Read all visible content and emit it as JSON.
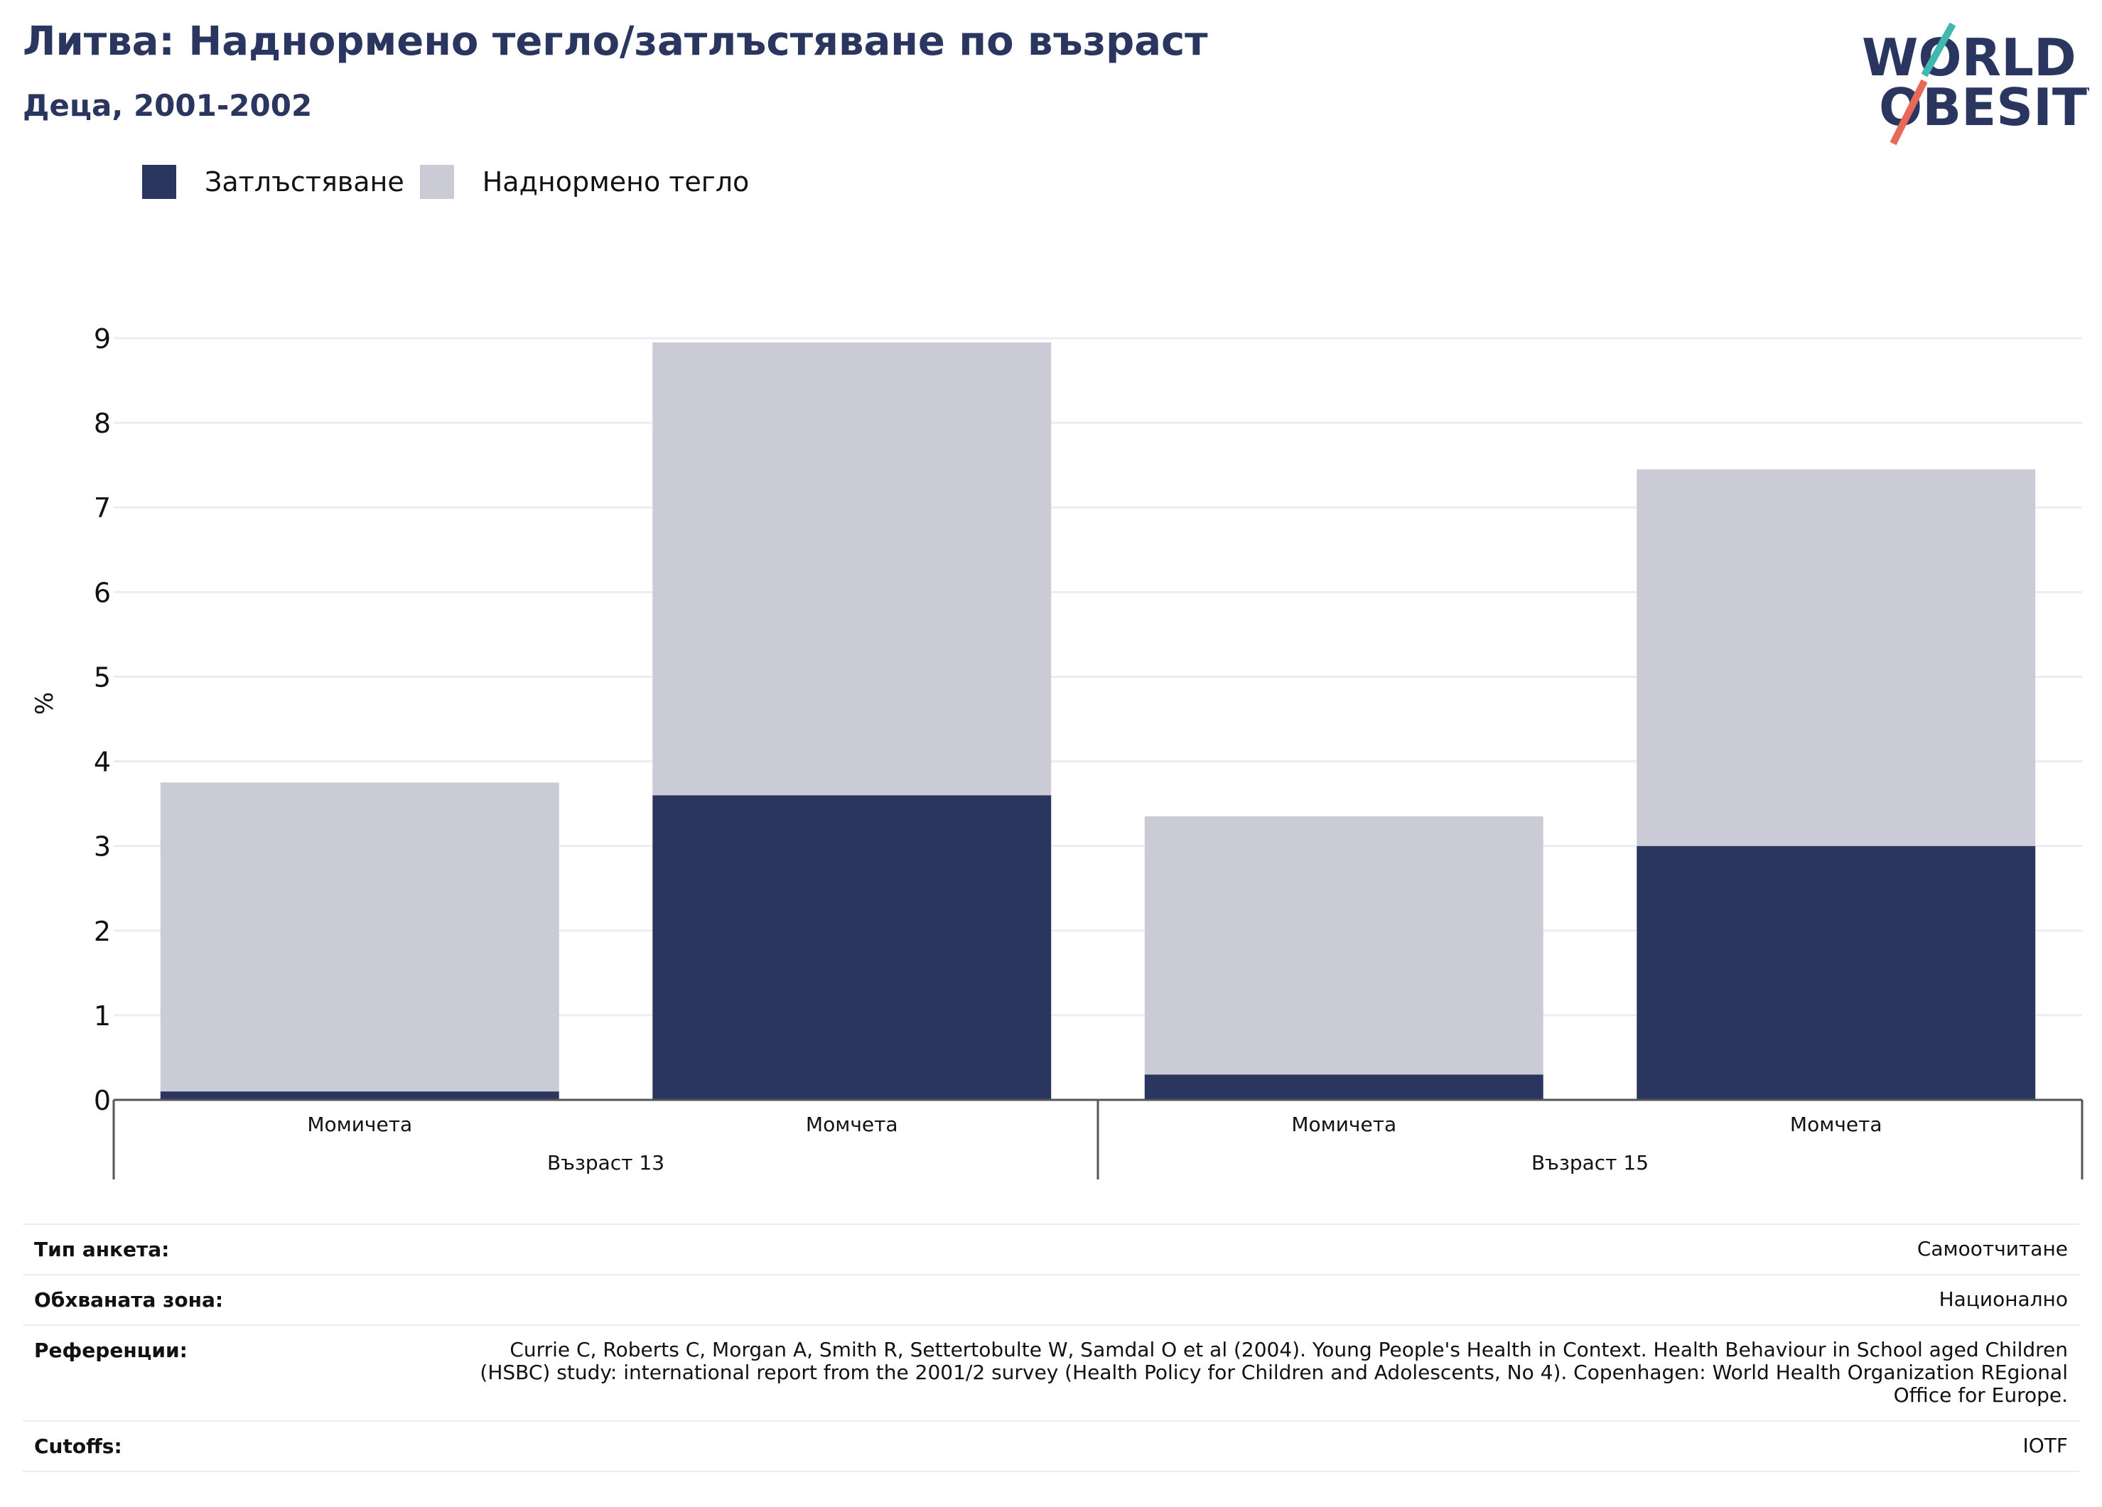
{
  "header": {
    "title": "Литва: Наднормено тегло/затлъстяване по възраст",
    "subtitle": "Деца, 2001-2002"
  },
  "logo": {
    "line1": "WORLD",
    "line2": "OBESITY"
  },
  "colors": {
    "obesity": "#2a365f",
    "overweight": "#cacbd6",
    "title": "#2a365f",
    "logo_teal": "#3fb8b0",
    "logo_coral": "#e8685a"
  },
  "chart_data": {
    "type": "bar",
    "stacked": true,
    "ylabel": "%",
    "ylim": [
      0,
      9
    ],
    "yticks": [
      0,
      1,
      2,
      3,
      4,
      5,
      6,
      7,
      8,
      9
    ],
    "grid": true,
    "legend_position": "top-left",
    "groups": [
      {
        "label": "Възраст 13",
        "categories": [
          "Момичета",
          "Момчета"
        ]
      },
      {
        "label": "Възраст 15",
        "categories": [
          "Момичета",
          "Момчета"
        ]
      }
    ],
    "categories": [
      "Момичета",
      "Момчета",
      "Момичета",
      "Момчета"
    ],
    "series": [
      {
        "name": "Затлъстяване",
        "values": [
          0.1,
          3.6,
          0.3,
          3.0
        ]
      },
      {
        "name": "Наднормено тегло",
        "values": [
          3.65,
          5.35,
          3.05,
          4.45
        ]
      }
    ]
  },
  "metadata": [
    {
      "label": "Тип анкета:",
      "value": "Самоотчитане"
    },
    {
      "label": "Обхваната зона:",
      "value": "Национално"
    },
    {
      "label": "Референции:",
      "value": "Currie C, Roberts C, Morgan A, Smith R, Settertobulte W, Samdal O et al (2004). Young People's Health in Context. Health Behaviour in School aged Children (HSBC) study: international report from the 2001/2 survey (Health Policy for Children and Adolescents, No 4). Copenhagen: World Health Organization REgional Office for Europe."
    },
    {
      "label": "Cutoffs:",
      "value": "IOTF"
    }
  ]
}
